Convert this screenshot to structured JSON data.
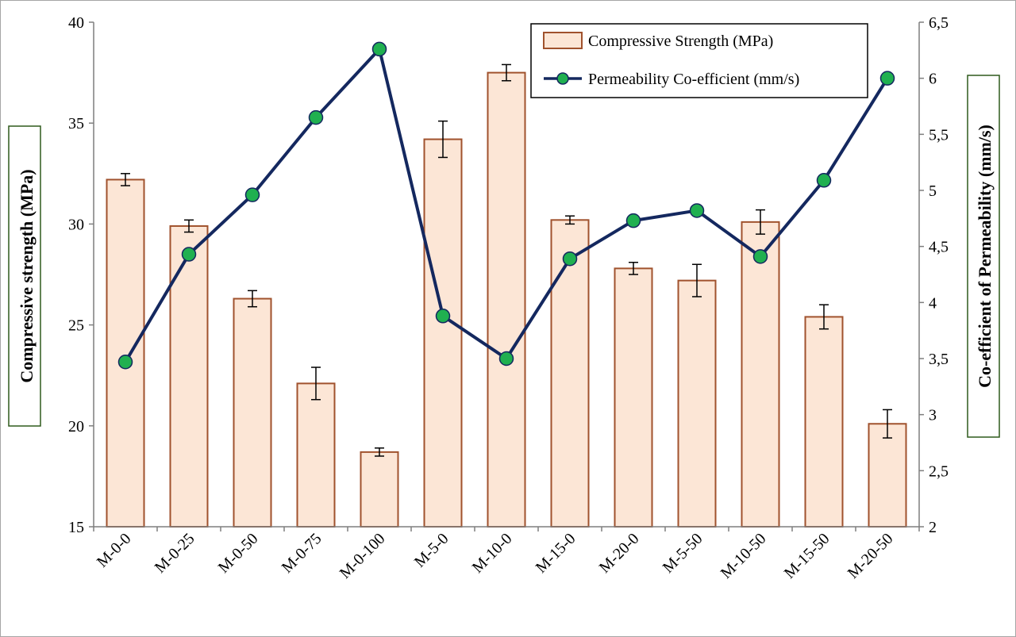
{
  "chart_data": {
    "type": "bar",
    "categories": [
      "M-0-0",
      "M-0-25",
      "M-0-50",
      "M-0-75",
      "M-0-100",
      "M-5-0",
      "M-10-0",
      "M-15-0",
      "M-20-0",
      "M-5-50",
      "M-10-50",
      "M-15-50",
      "M-20-50"
    ],
    "series": [
      {
        "name": "Compressive Strength (MPa)",
        "type": "bar",
        "axis": "left",
        "values": [
          32.2,
          29.9,
          26.3,
          22.1,
          18.7,
          34.2,
          37.5,
          30.2,
          27.8,
          27.2,
          30.1,
          25.4,
          20.1
        ],
        "error": [
          0.3,
          0.3,
          0.4,
          0.8,
          0.2,
          0.9,
          0.4,
          0.2,
          0.3,
          0.8,
          0.6,
          0.6,
          0.7
        ],
        "color": "#fce6d6",
        "edge_color": "#a0522d"
      },
      {
        "name": "Permeability Co-efficient (mm/s)",
        "type": "line",
        "axis": "right",
        "values": [
          3.47,
          4.43,
          4.96,
          5.65,
          6.26,
          3.88,
          3.5,
          4.39,
          4.73,
          4.82,
          4.41,
          5.09,
          6.0
        ],
        "color": "#14285f",
        "marker_color": "#20b050"
      }
    ],
    "ylabel": "Compressive strength (MPa)",
    "y2label": "Co-efficient of Permeability (mm/s)",
    "ylim": [
      15,
      40
    ],
    "y2lim": [
      2,
      6.5
    ],
    "yticks": [
      "15",
      "20",
      "25",
      "30",
      "35",
      "40"
    ],
    "y2ticks": [
      "2",
      "2,5",
      "3",
      "3,5",
      "4",
      "4,5",
      "5",
      "5,5",
      "6",
      "6,5"
    ],
    "legend_position": "top-right",
    "grid": false
  }
}
